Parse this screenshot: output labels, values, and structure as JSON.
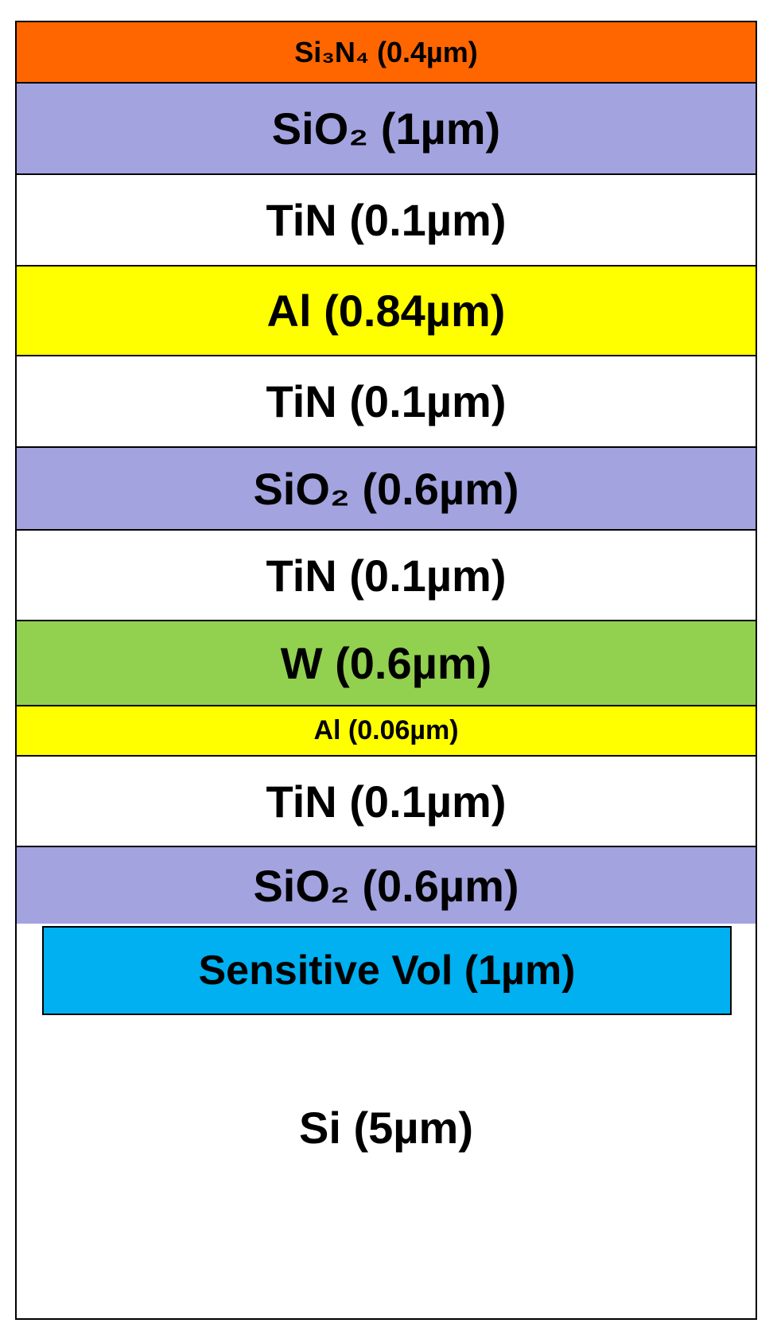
{
  "layers": [
    {
      "label": "Si₃N₄ (0.4µm)"
    },
    {
      "label": "SiO₂ (1µm)"
    },
    {
      "label": "TiN (0.1µm)"
    },
    {
      "label": "Al (0.84µm)"
    },
    {
      "label": "TiN (0.1µm)"
    },
    {
      "label": "SiO₂ (0.6µm)"
    },
    {
      "label": "TiN (0.1µm)"
    },
    {
      "label": "W (0.6µm)"
    },
    {
      "label": "Al (0.06µm)"
    },
    {
      "label": "TiN (0.1µm)"
    },
    {
      "label": "SiO₂ (0.6µm)"
    }
  ],
  "sensitive_volume": {
    "label": "Sensitive Vol (1µm)"
  },
  "substrate": {
    "label": "Si (5µm)"
  }
}
